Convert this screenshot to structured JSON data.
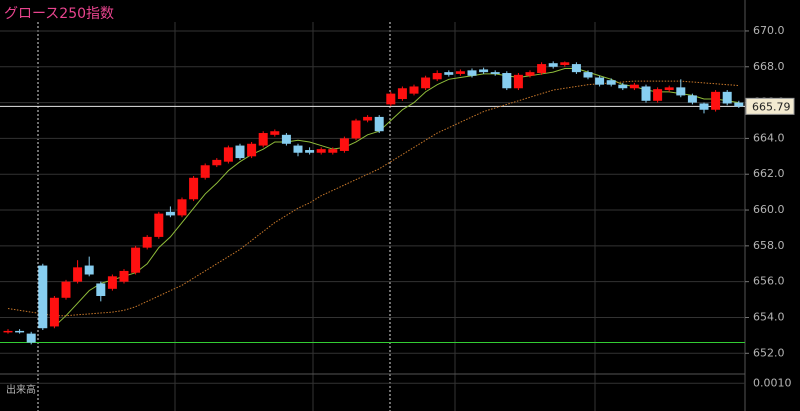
{
  "chart_data": {
    "type": "candlestick",
    "title": "グロース250指数",
    "up_color": "#ff1010",
    "down_color": "#87cef0",
    "open": [
      653.2,
      653.25,
      653.1,
      656.9,
      653.5,
      655.1,
      656.0,
      656.9,
      655.9,
      655.6,
      656.0,
      656.5,
      657.9,
      658.5,
      659.9,
      659.7,
      660.6,
      661.8,
      662.5,
      662.7,
      663.6,
      663.0,
      663.6,
      664.2,
      664.2,
      663.6,
      663.35,
      663.2,
      663.2,
      663.3,
      664.0,
      665.0,
      665.2,
      665.9,
      666.2,
      666.5,
      666.8,
      667.3,
      667.7,
      667.6,
      667.8,
      667.85,
      667.7,
      667.65,
      666.8,
      667.5,
      667.65,
      668.2,
      668.1,
      668.15,
      667.7,
      667.4,
      667.25,
      667.0,
      666.8,
      666.9,
      666.1,
      666.7,
      666.85,
      666.4,
      665.95,
      665.6,
      666.6,
      666.0
    ],
    "high": [
      653.35,
      653.35,
      653.2,
      657.0,
      655.2,
      656.1,
      657.2,
      657.4,
      656.0,
      656.4,
      656.7,
      658.0,
      658.6,
      659.9,
      660.2,
      660.7,
      661.9,
      662.6,
      662.9,
      663.6,
      663.7,
      663.8,
      664.4,
      664.5,
      664.3,
      663.7,
      663.5,
      663.5,
      663.5,
      664.1,
      665.1,
      665.3,
      665.3,
      666.6,
      666.9,
      667.0,
      667.5,
      667.8,
      667.8,
      667.85,
      667.9,
      667.95,
      667.8,
      667.75,
      667.65,
      667.8,
      668.25,
      668.3,
      668.3,
      668.25,
      667.8,
      667.5,
      667.35,
      667.1,
      667.1,
      667.0,
      666.85,
      666.95,
      667.3,
      666.5,
      666.0,
      666.7,
      666.7,
      666.1
    ],
    "low": [
      653.1,
      653.1,
      652.5,
      653.3,
      653.4,
      655.0,
      655.9,
      656.3,
      654.9,
      655.5,
      655.9,
      656.4,
      657.8,
      658.4,
      659.6,
      659.6,
      660.5,
      661.7,
      662.4,
      662.6,
      662.8,
      662.9,
      663.5,
      664.1,
      663.6,
      663.0,
      663.1,
      663.1,
      663.1,
      663.2,
      663.9,
      664.9,
      664.3,
      665.8,
      666.1,
      666.4,
      666.7,
      667.2,
      667.45,
      667.5,
      667.4,
      667.6,
      667.5,
      666.7,
      666.7,
      667.4,
      667.55,
      667.9,
      668.0,
      667.6,
      667.3,
      666.9,
      666.9,
      666.7,
      666.7,
      666.0,
      666.0,
      666.6,
      666.3,
      665.9,
      665.4,
      665.5,
      665.85,
      665.7
    ],
    "close": [
      653.25,
      653.2,
      652.6,
      653.4,
      655.1,
      656.0,
      656.8,
      656.4,
      655.2,
      656.3,
      656.6,
      657.9,
      658.5,
      659.8,
      659.7,
      660.6,
      661.8,
      662.5,
      662.8,
      663.5,
      662.9,
      663.7,
      664.3,
      664.4,
      663.7,
      663.2,
      663.2,
      663.4,
      663.4,
      664.0,
      665.0,
      665.2,
      664.4,
      666.5,
      666.8,
      666.9,
      667.4,
      667.65,
      667.55,
      667.75,
      667.5,
      667.7,
      667.6,
      666.8,
      667.55,
      667.7,
      668.15,
      668.0,
      668.25,
      667.7,
      667.4,
      667.0,
      667.0,
      666.8,
      667.0,
      666.1,
      666.75,
      666.85,
      666.4,
      666.0,
      665.6,
      666.6,
      665.95,
      665.79
    ],
    "series": [
      {
        "color": "#8fbc3a",
        "style": "solid",
        "values": [
          null,
          null,
          null,
          null,
          653.5,
          654.1,
          654.8,
          655.5,
          655.9,
          656.1,
          656.3,
          656.5,
          657.0,
          657.9,
          658.5,
          659.3,
          660.1,
          660.9,
          661.5,
          662.2,
          662.7,
          663.1,
          663.4,
          663.8,
          663.8,
          663.9,
          663.8,
          663.6,
          663.4,
          663.5,
          663.8,
          664.2,
          664.4,
          665.0,
          665.6,
          666.0,
          666.6,
          667.0,
          667.3,
          667.4,
          667.5,
          667.6,
          667.6,
          667.5,
          667.4,
          667.5,
          667.6,
          667.7,
          667.9,
          667.9,
          667.7,
          667.5,
          667.3,
          667.0,
          666.9,
          666.7,
          666.6,
          666.6,
          666.5,
          666.4,
          666.2,
          666.2,
          666.1,
          666.0
        ]
      },
      {
        "color": "#c8782a",
        "style": "dotted",
        "values": [
          654.5,
          654.4,
          654.3,
          654.2,
          654.1,
          654.1,
          654.15,
          654.2,
          654.25,
          654.3,
          654.4,
          654.6,
          654.9,
          655.2,
          655.5,
          655.8,
          656.2,
          656.6,
          657.0,
          657.4,
          657.8,
          658.3,
          658.8,
          659.3,
          659.7,
          660.1,
          660.4,
          660.8,
          661.1,
          661.4,
          661.7,
          662.0,
          662.3,
          662.7,
          663.1,
          663.5,
          663.9,
          664.3,
          664.6,
          664.9,
          665.2,
          665.5,
          665.7,
          665.9,
          666.1,
          666.3,
          666.5,
          666.7,
          666.8,
          666.9,
          667.0,
          667.05,
          667.1,
          667.15,
          667.2,
          667.2,
          667.2,
          667.2,
          667.2,
          667.15,
          667.1,
          667.05,
          667.0,
          666.95
        ]
      }
    ],
    "hline": {
      "value": 652.6,
      "color": "#33cc33"
    },
    "ylim": [
      650.9,
      670.5
    ],
    "yticks": [
      {
        "value": 652,
        "label": "652.0"
      },
      {
        "value": 654,
        "label": "654.0"
      },
      {
        "value": 656,
        "label": "656.0"
      },
      {
        "value": 658,
        "label": "658.0"
      },
      {
        "value": 660,
        "label": "660.0"
      },
      {
        "value": 662,
        "label": "662.0"
      },
      {
        "value": 664,
        "label": "664.0"
      },
      {
        "value": 666,
        "label": "666.0"
      },
      {
        "value": 668,
        "label": "668.0"
      },
      {
        "value": 670,
        "label": "670.0"
      }
    ],
    "grid": true,
    "volume_label": "出来高",
    "volume_ylim": [
      0,
      0.0013
    ],
    "volume_yticks": [
      {
        "value": 0.001,
        "label": "0.0010"
      }
    ]
  }
}
